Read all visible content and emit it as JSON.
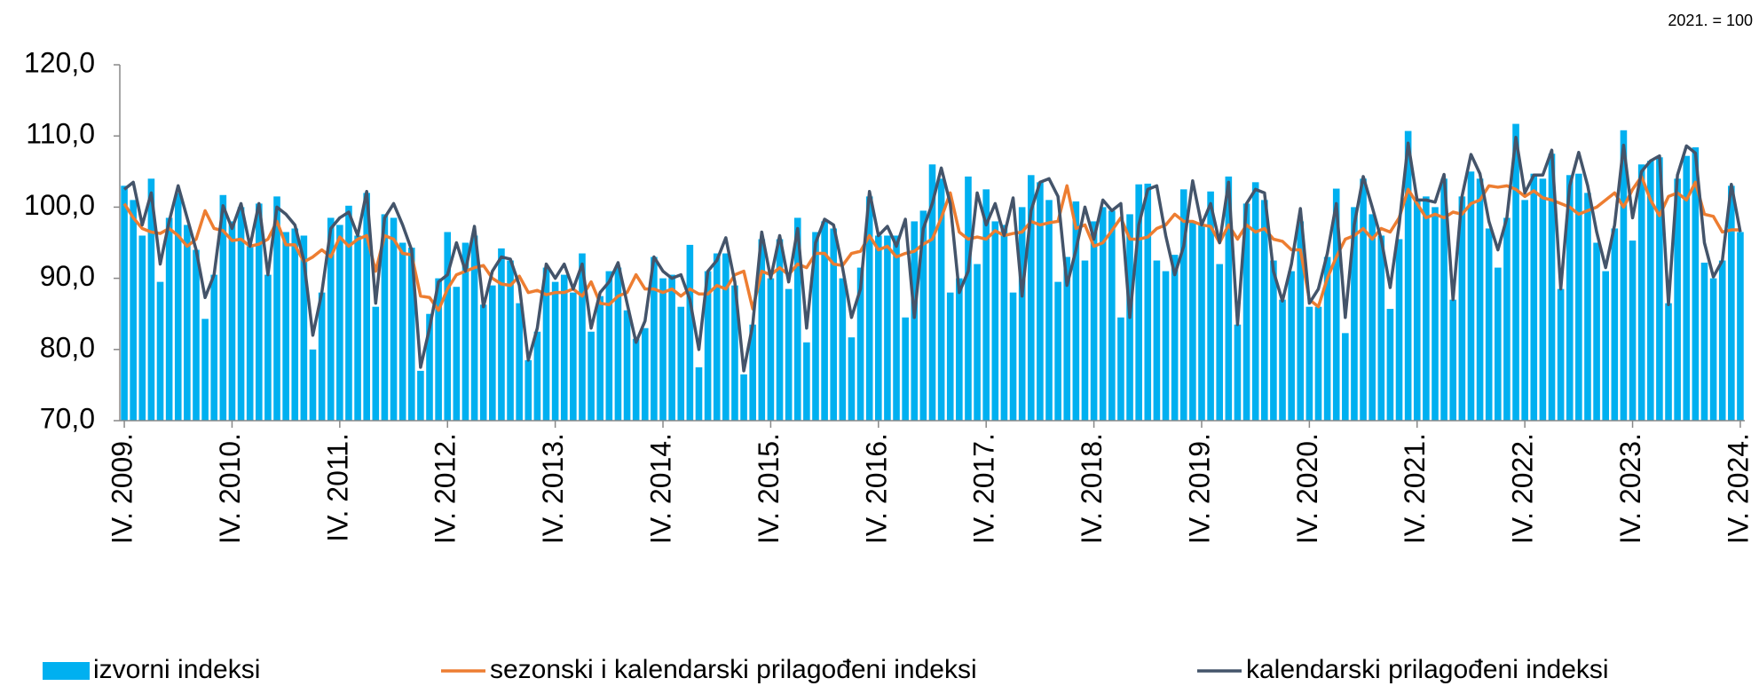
{
  "chart_data": {
    "type": "bar_line",
    "unit_note": "2021. = 100",
    "categories": [
      "IV. 2009.",
      null,
      null,
      null,
      null,
      null,
      null,
      null,
      null,
      null,
      null,
      null,
      "IV. 2010.",
      null,
      null,
      null,
      null,
      null,
      null,
      null,
      null,
      null,
      null,
      null,
      "IV. 2011.",
      null,
      null,
      null,
      null,
      null,
      null,
      null,
      null,
      null,
      null,
      null,
      "IV. 2012.",
      null,
      null,
      null,
      null,
      null,
      null,
      null,
      null,
      null,
      null,
      null,
      "IV. 2013.",
      null,
      null,
      null,
      null,
      null,
      null,
      null,
      null,
      null,
      null,
      null,
      "IV. 2014.",
      null,
      null,
      null,
      null,
      null,
      null,
      null,
      null,
      null,
      null,
      null,
      "IV. 2015.",
      null,
      null,
      null,
      null,
      null,
      null,
      null,
      null,
      null,
      null,
      null,
      "IV. 2016.",
      null,
      null,
      null,
      null,
      null,
      null,
      null,
      null,
      null,
      null,
      null,
      "IV. 2017.",
      null,
      null,
      null,
      null,
      null,
      null,
      null,
      null,
      null,
      null,
      null,
      "IV. 2018.",
      null,
      null,
      null,
      null,
      null,
      null,
      null,
      null,
      null,
      null,
      null,
      "IV. 2019.",
      null,
      null,
      null,
      null,
      null,
      null,
      null,
      null,
      null,
      null,
      null,
      "IV. 2020.",
      null,
      null,
      null,
      null,
      null,
      null,
      null,
      null,
      null,
      null,
      null,
      "IV. 2021.",
      null,
      null,
      null,
      null,
      null,
      null,
      null,
      null,
      null,
      null,
      null,
      "IV. 2022.",
      null,
      null,
      null,
      null,
      null,
      null,
      null,
      null,
      null,
      null,
      null,
      "IV. 2023.",
      null,
      null,
      null,
      null,
      null,
      null,
      null,
      null,
      null,
      null,
      null,
      "IV. 2024."
    ],
    "series": [
      {
        "name": "izvorni indeksi",
        "kind": "bar",
        "color": "#00b0f0",
        "values": [
          103,
          101,
          96,
          104,
          89.5,
          98.5,
          102,
          97.5,
          94,
          84.3,
          90.5,
          101.7,
          98,
          100,
          94.5,
          100.5,
          90.5,
          101.5,
          96.5,
          97,
          96,
          80,
          88,
          98.5,
          97.5,
          100.2,
          96,
          102,
          86,
          99,
          98.5,
          95,
          94.3,
          77,
          85,
          90,
          96.5,
          88.8,
          95,
          96,
          86.3,
          89,
          94.2,
          92.5,
          86.5,
          78.5,
          82.5,
          91.5,
          89.5,
          90.5,
          88,
          93.5,
          82.5,
          87.5,
          91,
          91.5,
          85.5,
          81.5,
          83,
          93,
          90,
          90.5,
          86,
          94.7,
          77.5,
          91,
          93.5,
          93.5,
          89,
          76.5,
          83.5,
          95.5,
          90,
          95.5,
          88.5,
          98.5,
          81,
          96.5,
          98,
          97,
          90,
          81.7,
          91.5,
          101.5,
          96,
          96,
          96,
          84.5,
          98,
          99.5,
          106,
          104,
          88,
          90,
          104.3,
          92,
          102.5,
          98,
          97.5,
          88,
          100,
          104.5,
          103.5,
          101,
          89.5,
          93,
          100.8,
          92.5,
          98,
          100,
          99.5,
          84.5,
          99,
          103.2,
          103.3,
          92.5,
          91,
          93.3,
          102.5,
          98,
          97.5,
          102.2,
          92,
          104.3,
          83.5,
          100.5,
          103.5,
          101,
          92.5,
          87,
          91,
          98,
          86,
          86,
          93,
          102.6,
          82.3,
          100,
          104,
          99,
          96,
          85.7,
          95.5,
          110.7,
          101,
          101.5,
          100,
          104,
          87,
          101.5,
          105,
          104,
          97,
          91.5,
          98.5,
          111.7,
          101,
          104.7,
          104,
          107.5,
          88.5,
          104.5,
          104.7,
          102,
          95,
          91,
          97,
          110.8,
          95.3,
          106,
          106.5,
          107,
          86.5,
          104,
          107.2,
          108.4,
          92.2,
          90,
          92.5,
          103,
          96.5
        ]
      },
      {
        "name": "sezonski i kalendarski prilagođeni indeksi",
        "kind": "line",
        "color": "#ed7d31",
        "values": [
          100.5,
          98.5,
          97,
          96.5,
          96.3,
          97,
          96,
          94.5,
          95.5,
          99.5,
          97,
          96.7,
          95.3,
          95.5,
          94.5,
          94.8,
          95.5,
          98,
          94.7,
          94.7,
          92.3,
          93,
          94,
          93,
          95.8,
          94.5,
          95.5,
          96,
          91,
          96,
          95.5,
          93.5,
          93.3,
          87.5,
          87.3,
          85.5,
          88.5,
          90.5,
          91,
          91.5,
          91.8,
          90,
          89.2,
          89,
          90.3,
          88,
          88.3,
          87.7,
          88,
          88,
          88.5,
          87.5,
          89.5,
          86.5,
          86.3,
          87.5,
          88,
          90.5,
          88.5,
          88.5,
          88,
          88.5,
          87.5,
          88.5,
          87.8,
          87.8,
          89,
          88.5,
          90.5,
          91,
          85.7,
          91,
          90.5,
          91.5,
          90.5,
          92,
          91.5,
          93.5,
          93.5,
          92,
          91.8,
          93.5,
          93.8,
          96,
          94,
          94.5,
          93,
          93.5,
          93.8,
          94.8,
          95.5,
          98.5,
          102,
          96.5,
          95.5,
          95.8,
          95.5,
          96.7,
          96,
          96.3,
          96.5,
          98,
          97.5,
          97.8,
          98,
          103,
          97,
          97.5,
          94.5,
          95,
          96.7,
          98.5,
          95.5,
          95.5,
          95.8,
          97,
          97.5,
          99,
          98,
          98,
          97.5,
          97.3,
          95,
          97.5,
          95.5,
          97.5,
          96.5,
          97,
          95.5,
          95.2,
          94,
          94,
          87,
          86,
          90,
          93,
          95.5,
          96,
          97,
          95.5,
          97,
          96.5,
          98.5,
          102.5,
          100.5,
          98.5,
          99,
          98.5,
          99.3,
          99,
          100.5,
          101,
          103,
          102.8,
          103,
          102.5,
          101.5,
          102.3,
          101.3,
          101,
          100.5,
          100,
          99,
          99.5,
          100,
          101,
          102,
          100,
          102.5,
          104.3,
          101,
          98.8,
          101.5,
          102,
          101,
          103.5,
          99,
          98.7,
          96.5,
          96.8,
          96.8
        ]
      },
      {
        "name": "kalendarski prilagođeni indeksi",
        "kind": "line",
        "color": "#44546a",
        "values": [
          102.5,
          103.5,
          97.5,
          102,
          92,
          98,
          103,
          98.5,
          94,
          87.3,
          90.5,
          100.2,
          97,
          100.5,
          94.5,
          100.5,
          90.5,
          100,
          99,
          97.5,
          92.5,
          82,
          88,
          97,
          98.5,
          99.3,
          96,
          102.2,
          86.5,
          98.5,
          100.5,
          97.5,
          94,
          77.5,
          83,
          89.5,
          90.5,
          95,
          91,
          97.3,
          86,
          91,
          93,
          92.7,
          89,
          78.5,
          83,
          92,
          90,
          92,
          88.5,
          92,
          83,
          88,
          89.5,
          92.2,
          86.5,
          81,
          84,
          93,
          91,
          90,
          90.5,
          87,
          80,
          91,
          92.5,
          95.7,
          89.5,
          77,
          83.5,
          96.5,
          90,
          96,
          89.5,
          97,
          83,
          95,
          98.3,
          97.5,
          91.5,
          84.5,
          88.5,
          102.2,
          96,
          97.3,
          94.5,
          98.3,
          84.5,
          97,
          100.5,
          105.5,
          100.5,
          88,
          91,
          102,
          97.5,
          100.5,
          96,
          101.3,
          87.5,
          99.5,
          103.5,
          104,
          101.5,
          89,
          94,
          100,
          95.5,
          101,
          99.5,
          100.5,
          84.5,
          97.5,
          102.5,
          103,
          96,
          90.5,
          94.5,
          103.7,
          97.5,
          100.5,
          95,
          103.5,
          83.5,
          100.5,
          102.5,
          102,
          91,
          86.8,
          92,
          99.8,
          86.5,
          88.5,
          93.5,
          100.5,
          84.5,
          97.5,
          104.3,
          100,
          95.5,
          88.7,
          97.5,
          109,
          101,
          101,
          100.7,
          104.6,
          87,
          101.5,
          107.4,
          104.7,
          98,
          94,
          98.5,
          109.8,
          102,
          104.5,
          104.5,
          108,
          88.5,
          103,
          107.7,
          103,
          96.5,
          91.5,
          97.5,
          108.7,
          98.5,
          105,
          106.5,
          107.2,
          86.3,
          104.5,
          108.6,
          107.6,
          95,
          90.2,
          92.5,
          103.2,
          96.5
        ]
      }
    ],
    "ylim": [
      70,
      120
    ],
    "yticks": [
      {
        "value": 70,
        "label": "70,0"
      },
      {
        "value": 80,
        "label": "80,0"
      },
      {
        "value": 90,
        "label": "90,0"
      },
      {
        "value": 100,
        "label": "100,0"
      },
      {
        "value": 110,
        "label": "110,0"
      },
      {
        "value": 120,
        "label": "120,0"
      }
    ],
    "grid": false
  }
}
